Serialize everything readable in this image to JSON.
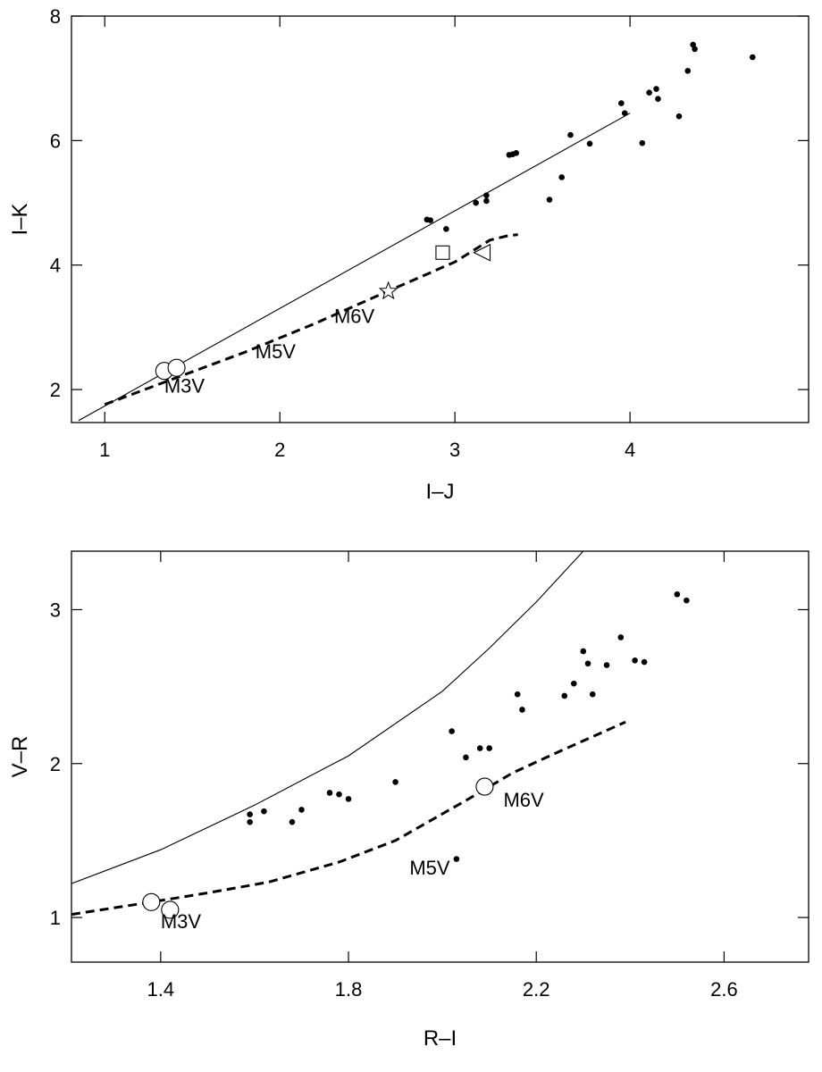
{
  "chart_data": [
    {
      "type": "scatter",
      "xlabel": "I–J",
      "ylabel": "I–K",
      "xlim": [
        0.81,
        5.02
      ],
      "ylim": [
        1.47,
        8.0
      ],
      "xticks": [
        1,
        2,
        3,
        4
      ],
      "yticks": [
        2,
        4,
        6,
        8
      ],
      "grid": false,
      "series": [
        {
          "kind": "points",
          "marker": "dot",
          "points": [
            [
              2.84,
              4.73
            ],
            [
              2.86,
              4.72
            ],
            [
              2.95,
              4.58
            ],
            [
              3.12,
              5.0
            ],
            [
              3.18,
              5.03
            ],
            [
              3.18,
              5.12
            ],
            [
              3.31,
              5.77
            ],
            [
              3.33,
              5.78
            ],
            [
              3.35,
              5.8
            ],
            [
              3.54,
              5.05
            ],
            [
              3.61,
              5.41
            ],
            [
              3.66,
              6.09
            ],
            [
              3.77,
              5.95
            ],
            [
              3.95,
              6.6
            ],
            [
              3.97,
              6.44
            ],
            [
              4.07,
              5.96
            ],
            [
              4.11,
              6.77
            ],
            [
              4.15,
              6.83
            ],
            [
              4.16,
              6.67
            ],
            [
              4.28,
              6.39
            ],
            [
              4.33,
              7.12
            ],
            [
              4.36,
              7.54
            ],
            [
              4.37,
              7.47
            ],
            [
              4.7,
              7.34
            ]
          ]
        },
        {
          "kind": "line",
          "style": "solid",
          "points": [
            [
              0.85,
              1.5
            ],
            [
              4.0,
              6.44
            ]
          ]
        },
        {
          "kind": "line",
          "style": "dashed",
          "points": [
            [
              1.0,
              1.76
            ],
            [
              1.4,
              2.18
            ],
            [
              1.8,
              2.6
            ],
            [
              2.2,
              3.06
            ],
            [
              2.6,
              3.56
            ],
            [
              3.0,
              4.05
            ],
            [
              3.2,
              4.4
            ],
            [
              3.3,
              4.47
            ],
            [
              3.36,
              4.49
            ]
          ]
        },
        {
          "kind": "points",
          "marker": "circle",
          "points": [
            [
              1.34,
              2.3
            ],
            [
              1.41,
              2.35
            ]
          ]
        },
        {
          "kind": "points",
          "marker": "star",
          "points": [
            [
              2.62,
              3.58
            ]
          ]
        },
        {
          "kind": "points",
          "marker": "square",
          "points": [
            [
              2.93,
              4.2
            ]
          ]
        },
        {
          "kind": "points",
          "marker": "triangle-left",
          "points": [
            [
              3.16,
              4.2
            ]
          ]
        }
      ],
      "annotations": [
        {
          "text": "M3V",
          "x": 1.34,
          "y": 1.95
        },
        {
          "text": "M5V",
          "x": 1.86,
          "y": 2.5
        },
        {
          "text": "M6V",
          "x": 2.31,
          "y": 3.07
        }
      ]
    },
    {
      "type": "scatter",
      "xlabel": "R–I",
      "ylabel": "V–R",
      "xlim": [
        1.21,
        2.78
      ],
      "ylim": [
        0.71,
        3.38
      ],
      "xticks": [
        1.4,
        1.8,
        2.2,
        2.6
      ],
      "xtick_labels": [
        "1.4",
        "1.8",
        "2.2",
        "2.6"
      ],
      "yticks": [
        1,
        2,
        3
      ],
      "grid": false,
      "series": [
        {
          "kind": "points",
          "marker": "dot",
          "points": [
            [
              1.59,
              1.62
            ],
            [
              1.59,
              1.67
            ],
            [
              1.62,
              1.69
            ],
            [
              1.68,
              1.62
            ],
            [
              1.7,
              1.7
            ],
            [
              1.76,
              1.81
            ],
            [
              1.78,
              1.8
            ],
            [
              1.8,
              1.77
            ],
            [
              1.9,
              1.88
            ],
            [
              2.02,
              2.21
            ],
            [
              2.03,
              1.38
            ],
            [
              2.05,
              2.04
            ],
            [
              2.08,
              2.1
            ],
            [
              2.1,
              2.1
            ],
            [
              2.16,
              2.45
            ],
            [
              2.17,
              2.35
            ],
            [
              2.26,
              2.44
            ],
            [
              2.28,
              2.52
            ],
            [
              2.3,
              2.73
            ],
            [
              2.31,
              2.65
            ],
            [
              2.32,
              2.45
            ],
            [
              2.35,
              2.64
            ],
            [
              2.38,
              2.82
            ],
            [
              2.41,
              2.67
            ],
            [
              2.43,
              2.66
            ],
            [
              2.5,
              3.1
            ],
            [
              2.52,
              3.06
            ]
          ]
        },
        {
          "kind": "line",
          "style": "solid",
          "points": [
            [
              1.21,
              1.22
            ],
            [
              1.4,
              1.44
            ],
            [
              1.6,
              1.73
            ],
            [
              1.8,
              2.05
            ],
            [
              2.0,
              2.47
            ],
            [
              2.1,
              2.75
            ],
            [
              2.2,
              3.05
            ],
            [
              2.3,
              3.38
            ]
          ]
        },
        {
          "kind": "line",
          "style": "dashed",
          "points": [
            [
              1.21,
              1.02
            ],
            [
              1.38,
              1.1
            ],
            [
              1.5,
              1.16
            ],
            [
              1.63,
              1.23
            ],
            [
              1.78,
              1.36
            ],
            [
              1.9,
              1.5
            ],
            [
              2.05,
              1.76
            ],
            [
              2.15,
              1.94
            ],
            [
              2.25,
              2.08
            ],
            [
              2.39,
              2.27
            ]
          ]
        },
        {
          "kind": "points",
          "marker": "circle",
          "points": [
            [
              1.38,
              1.1
            ],
            [
              1.42,
              1.05
            ],
            [
              2.09,
              1.85
            ]
          ]
        }
      ],
      "annotations": [
        {
          "text": "M3V",
          "x": 1.4,
          "y": 0.93
        },
        {
          "text": "M5V",
          "x": 1.93,
          "y": 1.28
        },
        {
          "text": "M6V",
          "x": 2.13,
          "y": 1.72
        }
      ]
    }
  ]
}
